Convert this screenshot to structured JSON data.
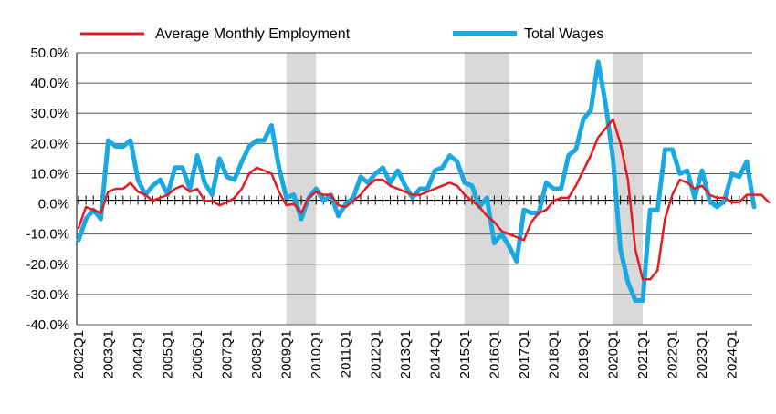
{
  "chart_data": {
    "type": "line",
    "title": "",
    "xlabel": "",
    "ylabel": "",
    "ylim": [
      -40,
      50
    ],
    "y_ticks": [
      50,
      40,
      30,
      20,
      10,
      0,
      -10,
      -20,
      -30,
      -40
    ],
    "y_tick_labels": [
      "50.0%",
      "40.0%",
      "30.0%",
      "20.0%",
      "10.0%",
      "0.0%",
      "-10.0%",
      "-20.0%",
      "-30.0%",
      "-40.0%"
    ],
    "grid": "horizontal",
    "legend_position": "top",
    "x_tick_labels": [
      "2002Q1",
      "2003Q1",
      "2004Q1",
      "2005Q1",
      "2006Q1",
      "2007Q1",
      "2008Q1",
      "2009Q1",
      "2010Q1",
      "2011Q1",
      "2012Q1",
      "2013Q1",
      "2014Q1",
      "2015Q1",
      "2016Q1",
      "2017Q1",
      "2018Q1",
      "2019Q1",
      "2020Q1",
      "2021Q1",
      "2022Q1",
      "2023Q1",
      "2024Q1"
    ],
    "shaded_periods": [
      {
        "start": "2009Q1",
        "end": "2010Q1"
      },
      {
        "start": "2015Q1",
        "end": "2016Q3"
      },
      {
        "start": "2020Q1",
        "end": "2021Q1"
      }
    ],
    "series": [
      {
        "name": "Average Monthly Employment",
        "color": "#e31b23",
        "start": "2002Q1",
        "values": [
          -8,
          -1,
          -2,
          -3,
          4,
          5,
          5,
          7,
          4,
          3,
          1,
          2,
          3,
          5,
          6,
          4,
          5,
          1,
          1,
          -0.5,
          0.5,
          2,
          5,
          10,
          12,
          11,
          10,
          4,
          -0.5,
          0,
          -3,
          2,
          4,
          3,
          3,
          -0.5,
          -1,
          1,
          3,
          6,
          8,
          8,
          6,
          5,
          4,
          3,
          3,
          4,
          5,
          6,
          7,
          6,
          3,
          1,
          -1,
          -4,
          -6,
          -9,
          -10,
          -11,
          -12,
          -6,
          -3,
          -2,
          1,
          2,
          2,
          6,
          11,
          16,
          22,
          25,
          28,
          20,
          8,
          -15,
          -25,
          -25,
          -22,
          -5,
          3,
          8,
          7,
          5,
          6,
          3,
          2,
          2,
          0.5,
          0.5,
          3,
          3,
          3,
          0.5
        ]
      },
      {
        "name": "Total Wages",
        "color": "#1ba8e0",
        "start": "2002Q1",
        "values": [
          -12,
          -5,
          -2,
          -5,
          21,
          19,
          19,
          21,
          8,
          3,
          6,
          8,
          3,
          12,
          12,
          5,
          16,
          7,
          3,
          15,
          9,
          8,
          14,
          19,
          21,
          21,
          26,
          12,
          2,
          3,
          -5,
          2,
          5,
          1,
          3,
          -4,
          0,
          2,
          9,
          7,
          10,
          12,
          7,
          11,
          6,
          2,
          5,
          5,
          11,
          12,
          16,
          14,
          7,
          6,
          -1,
          2,
          -13,
          -10,
          -14,
          -19,
          -2,
          -3,
          -3,
          7,
          5,
          5,
          16,
          18,
          28,
          31,
          47,
          33,
          15,
          -15,
          -26,
          -32,
          -32,
          -2,
          -2,
          18,
          18,
          10,
          11,
          2,
          11,
          1,
          -1,
          1,
          10,
          9,
          14,
          -1
        ]
      }
    ]
  }
}
